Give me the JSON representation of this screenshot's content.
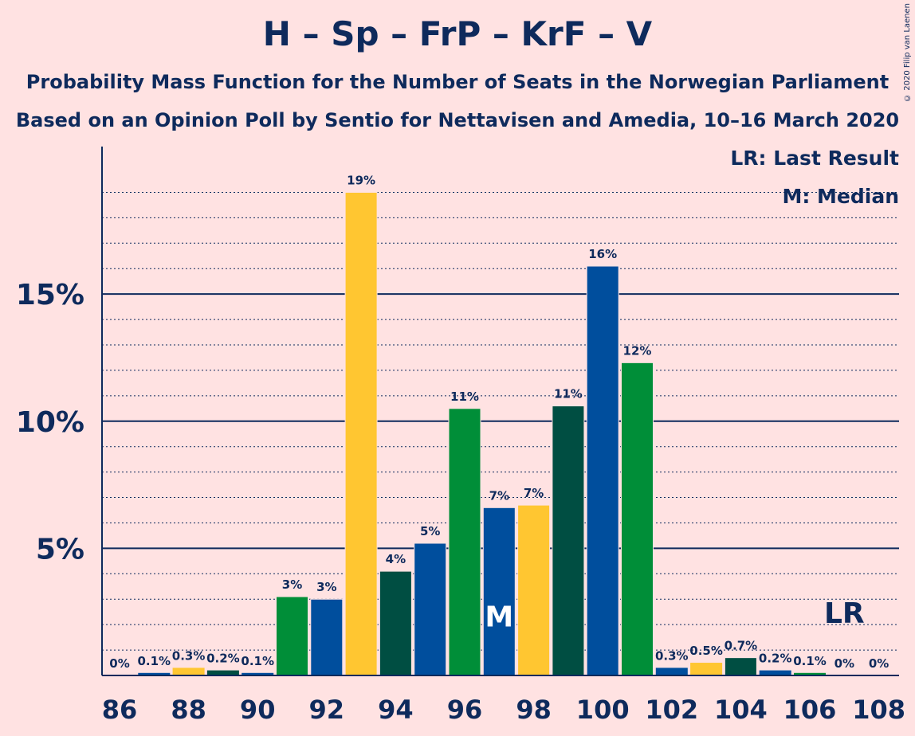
{
  "title": "H – Sp – FrP – KrF – V",
  "subtitle1": "Probability Mass Function for the Number of Seats in the Norwegian Parliament",
  "subtitle2": "Based on an Opinion Poll by Sentio for Nettavisen and Amedia, 10–16 March 2020",
  "copyright": "© 2020 Filip van Laenen",
  "legend": {
    "last_result": "LR: Last Result",
    "median": "M: Median"
  },
  "chart_data": {
    "type": "bar",
    "x": [
      86,
      87,
      88,
      89,
      90,
      91,
      92,
      93,
      94,
      95,
      96,
      97,
      98,
      99,
      100,
      101,
      102,
      103,
      104,
      105,
      106,
      107,
      108
    ],
    "values": [
      0,
      0.1,
      0.3,
      0.2,
      0.1,
      3.1,
      3.0,
      19.0,
      4.1,
      5.2,
      10.5,
      6.6,
      6.7,
      10.6,
      16.1,
      12.3,
      0.3,
      0.5,
      0.7,
      0.2,
      0.1,
      0,
      0
    ],
    "labels": [
      "0%",
      "0.1%",
      "0.3%",
      "0.2%",
      "0.1%",
      "3%",
      "3%",
      "19%",
      "4%",
      "5%",
      "11%",
      "7%",
      "7%",
      "11%",
      "16%",
      "12%",
      "0.3%",
      "0.5%",
      "0.7%",
      "0.2%",
      "0.1%",
      "0%",
      "0%"
    ],
    "colors": [
      "#004E9D",
      "#004E9D",
      "#FFC631",
      "#004E42",
      "#004E9D",
      "#008E38",
      "#004E9D",
      "#FFC631",
      "#004E42",
      "#004E9D",
      "#008E38",
      "#004E9D",
      "#FFC631",
      "#004E42",
      "#004E9D",
      "#008E38",
      "#004E9D",
      "#FFC631",
      "#004E42",
      "#004E9D",
      "#008E38",
      "#004E9D",
      "#FFC631"
    ],
    "x_ticks": [
      "86",
      "88",
      "90",
      "92",
      "94",
      "96",
      "98",
      "100",
      "102",
      "104",
      "106",
      "108"
    ],
    "y_ticks": [
      "5%",
      "10%",
      "15%"
    ],
    "y_tick_values": [
      5,
      10,
      15
    ],
    "ylim": [
      0,
      20.8
    ],
    "median_seat": 97,
    "median_label": "M",
    "last_result_seat": 107,
    "last_result_label": "LR",
    "grid": true
  }
}
